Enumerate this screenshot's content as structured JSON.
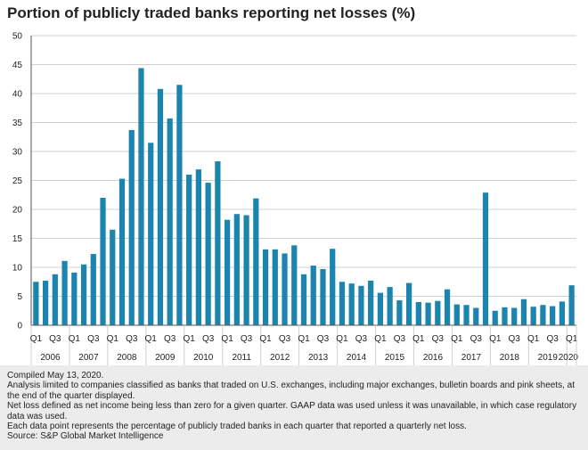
{
  "title": "Portion of publicly traded banks reporting net losses (%)",
  "notes": [
    "Compiled May 13, 2020.",
    "Analysis limited to companies classified as banks that traded on U.S. exchanges, including major exchanges, bulletin boards and pink sheets, at the end of the quarter displayed.",
    "Net loss defined as net income being less than zero for a given quarter. GAAP data was used unless it was unavailable, in which case regulatory data was used.",
    "Each data point represents the percentage of publicly traded banks in each quarter that reported a quarterly net loss.",
    "Source: S&P Global Market Intelligence"
  ],
  "colors": {
    "bar": "#1b85b0",
    "grid": "#d0d0d0",
    "axis": "#555555",
    "notes_bg": "#ececec"
  },
  "chart_data": {
    "type": "bar",
    "title": "Portion of publicly traded banks reporting net losses (%)",
    "xlabel": "",
    "ylabel": "",
    "ylim": [
      0,
      50
    ],
    "y_ticks": [
      0,
      5,
      10,
      15,
      20,
      25,
      30,
      35,
      40,
      45,
      50
    ],
    "grid": true,
    "quarter_tick_labels": [
      "Q1",
      "Q3"
    ],
    "last_quarter_label": "Q1",
    "years": [
      "2006",
      "2007",
      "2008",
      "2009",
      "2010",
      "2011",
      "2012",
      "2013",
      "2014",
      "2015",
      "2016",
      "2017",
      "2018",
      "2019",
      "2020"
    ],
    "categories": [
      "2006 Q1",
      "2006 Q2",
      "2006 Q3",
      "2006 Q4",
      "2007 Q1",
      "2007 Q2",
      "2007 Q3",
      "2007 Q4",
      "2008 Q1",
      "2008 Q2",
      "2008 Q3",
      "2008 Q4",
      "2009 Q1",
      "2009 Q2",
      "2009 Q3",
      "2009 Q4",
      "2010 Q1",
      "2010 Q2",
      "2010 Q3",
      "2010 Q4",
      "2011 Q1",
      "2011 Q2",
      "2011 Q3",
      "2011 Q4",
      "2012 Q1",
      "2012 Q2",
      "2012 Q3",
      "2012 Q4",
      "2013 Q1",
      "2013 Q2",
      "2013 Q3",
      "2013 Q4",
      "2014 Q1",
      "2014 Q2",
      "2014 Q3",
      "2014 Q4",
      "2015 Q1",
      "2015 Q2",
      "2015 Q3",
      "2015 Q4",
      "2016 Q1",
      "2016 Q2",
      "2016 Q3",
      "2016 Q4",
      "2017 Q1",
      "2017 Q2",
      "2017 Q3",
      "2017 Q4",
      "2018 Q1",
      "2018 Q2",
      "2018 Q3",
      "2018 Q4",
      "2019 Q1",
      "2019 Q2",
      "2019 Q3",
      "2019 Q4",
      "2020 Q1"
    ],
    "values": [
      7.5,
      7.7,
      8.8,
      11.1,
      9.1,
      10.5,
      12.3,
      22.0,
      16.5,
      25.3,
      33.7,
      44.4,
      31.5,
      40.8,
      35.7,
      41.5,
      26.0,
      26.9,
      24.6,
      28.3,
      18.2,
      19.2,
      19.0,
      21.9,
      13.1,
      13.1,
      12.4,
      13.8,
      8.8,
      10.3,
      9.7,
      13.2,
      7.5,
      7.2,
      6.8,
      7.7,
      5.6,
      6.6,
      4.3,
      7.3,
      4.0,
      3.9,
      4.2,
      6.2,
      3.6,
      3.5,
      3.0,
      22.9,
      2.5,
      3.1,
      3.0,
      4.5,
      3.2,
      3.5,
      3.3,
      4.1,
      6.9
    ]
  }
}
